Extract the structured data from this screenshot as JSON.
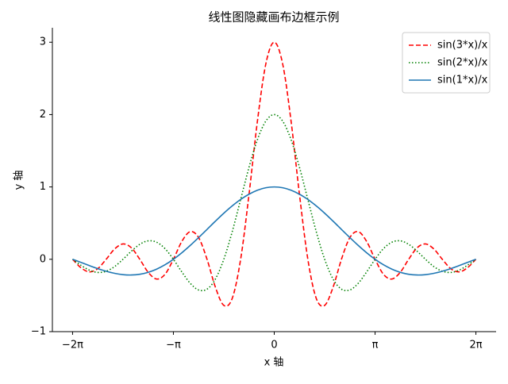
{
  "chart_data": {
    "type": "line",
    "title": "线性图隐藏画布边框示例",
    "x_label": "x 轴",
    "y_label": "y 轴",
    "x": [
      -6.283,
      -6.021,
      -5.76,
      -5.498,
      -5.236,
      -4.974,
      -4.712,
      -4.451,
      -4.189,
      -3.927,
      -3.665,
      -3.403,
      -3.142,
      -2.88,
      -2.618,
      -2.356,
      -2.094,
      -1.833,
      -1.571,
      -1.309,
      -1.047,
      -0.785,
      -0.524,
      -0.262,
      0,
      0.262,
      0.524,
      0.785,
      1.047,
      1.309,
      1.571,
      1.833,
      2.094,
      2.356,
      2.618,
      2.88,
      3.142,
      3.403,
      3.665,
      3.927,
      4.189,
      4.451,
      4.712,
      4.974,
      5.236,
      5.498,
      5.76,
      6.021,
      6.283
    ],
    "series": [
      {
        "name": "sin(3*x)/x",
        "color": "#ff0000",
        "linestyle": "dashed",
        "values": [
          0,
          -0.117,
          -0.174,
          -0.129,
          0,
          0.142,
          0.212,
          0.159,
          0,
          -0.18,
          -0.273,
          -0.208,
          0,
          0.246,
          0.382,
          0.3,
          0,
          -0.386,
          -0.637,
          -0.54,
          0,
          0.9,
          1.91,
          2.701,
          3,
          2.701,
          1.91,
          0.9,
          0,
          -0.54,
          -0.637,
          -0.386,
          0,
          0.3,
          0.382,
          0.246,
          0,
          -0.208,
          -0.273,
          -0.18,
          0,
          0.159,
          0.212,
          0.142,
          0,
          -0.129,
          -0.174,
          -0.117,
          0
        ]
      },
      {
        "name": "sin(2*x)/x",
        "color": "#008000",
        "linestyle": "dotted",
        "values": [
          0,
          -0.083,
          -0.15,
          -0.182,
          -0.165,
          -0.101,
          0,
          0.112,
          0.207,
          0.255,
          0.236,
          0.147,
          0,
          -0.174,
          -0.331,
          -0.424,
          -0.413,
          -0.273,
          0,
          0.382,
          0.827,
          1.273,
          1.654,
          1.91,
          2,
          1.91,
          1.654,
          1.273,
          0.827,
          0.382,
          0,
          -0.273,
          -0.413,
          -0.424,
          -0.331,
          -0.174,
          0,
          0.147,
          0.236,
          0.255,
          0.207,
          0.112,
          0,
          -0.101,
          -0.165,
          -0.182,
          -0.15,
          -0.083,
          0
        ]
      },
      {
        "name": "sin(1*x)/x",
        "color": "#1f77b4",
        "linestyle": "solid",
        "values": [
          0,
          -0.043,
          -0.087,
          -0.129,
          -0.165,
          -0.194,
          -0.212,
          -0.217,
          -0.207,
          -0.18,
          -0.136,
          -0.076,
          0,
          0.09,
          0.191,
          0.3,
          0.413,
          0.527,
          0.637,
          0.738,
          0.827,
          0.9,
          0.955,
          0.989,
          1,
          0.989,
          0.955,
          0.9,
          0.827,
          0.738,
          0.637,
          0.527,
          0.413,
          0.3,
          0.191,
          0.09,
          0,
          -0.076,
          -0.136,
          -0.18,
          -0.207,
          -0.217,
          -0.212,
          -0.194,
          -0.165,
          -0.129,
          -0.087,
          -0.043,
          0
        ]
      }
    ],
    "xlim": [
      -6.912,
      6.912
    ],
    "xticks": [
      {
        "value": -6.283,
        "label": "−2π"
      },
      {
        "value": -3.142,
        "label": "−π"
      },
      0,
      {
        "value": 3.142,
        "label": "π"
      },
      {
        "value": 6.283,
        "label": "2π"
      }
    ],
    "ylim": [
      -1,
      3.2
    ],
    "yticks": [
      {
        "value": -1,
        "label": "−1"
      },
      0,
      1,
      2,
      3
    ],
    "legend": "upper right",
    "grid": false
  }
}
